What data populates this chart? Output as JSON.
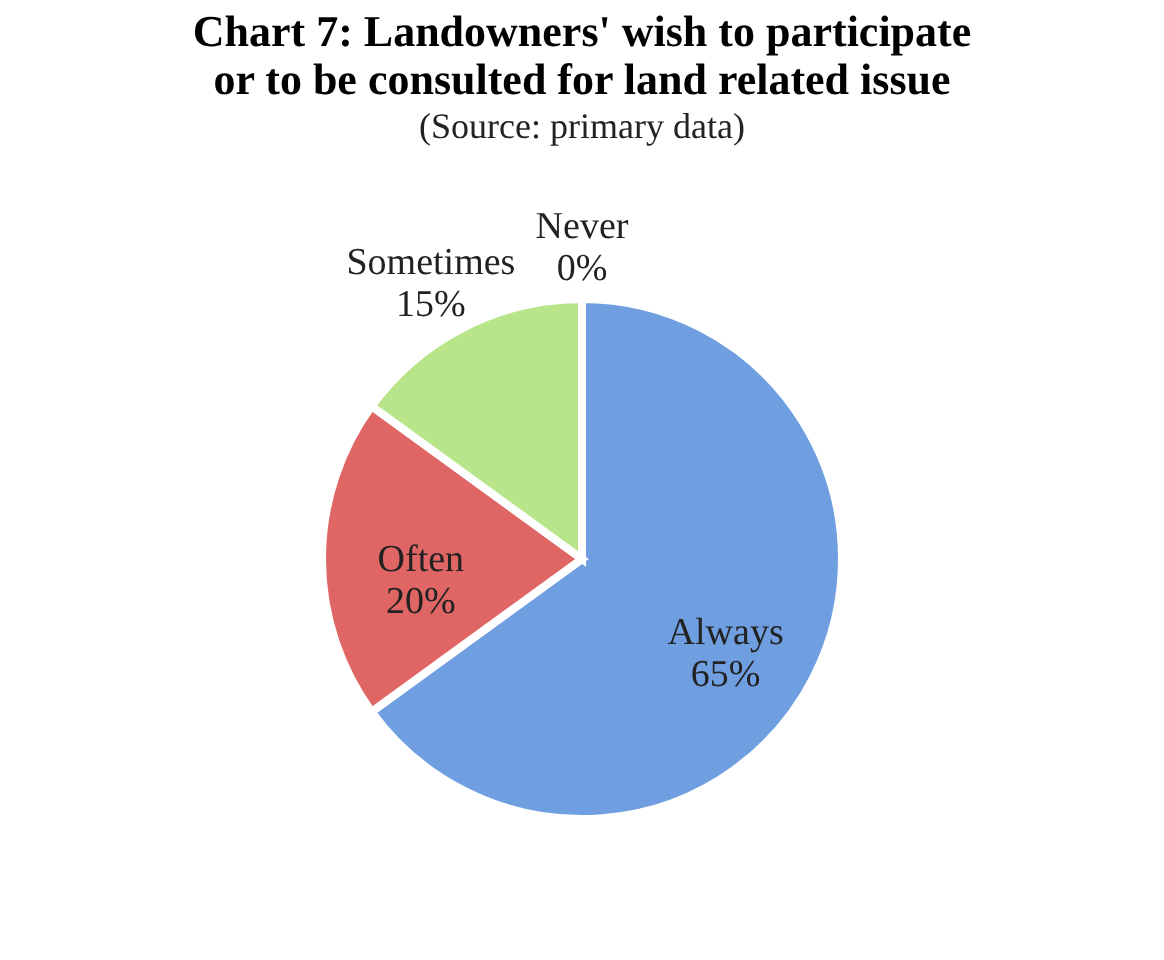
{
  "chart_data": {
    "type": "pie",
    "title": "Chart 7: Landowners' wish to participate\nor to be consulted for land related issue",
    "subtitle": "(Source: primary data)",
    "categories": [
      "Always",
      "Often",
      "Sometimes",
      "Never"
    ],
    "values": [
      65,
      20,
      15,
      0
    ],
    "colors": [
      "#6f9fe0",
      "#e06666",
      "#b9e58a",
      "#b0b0b0"
    ],
    "value_labels": [
      "65%",
      "20%",
      "15%",
      "0%"
    ]
  }
}
